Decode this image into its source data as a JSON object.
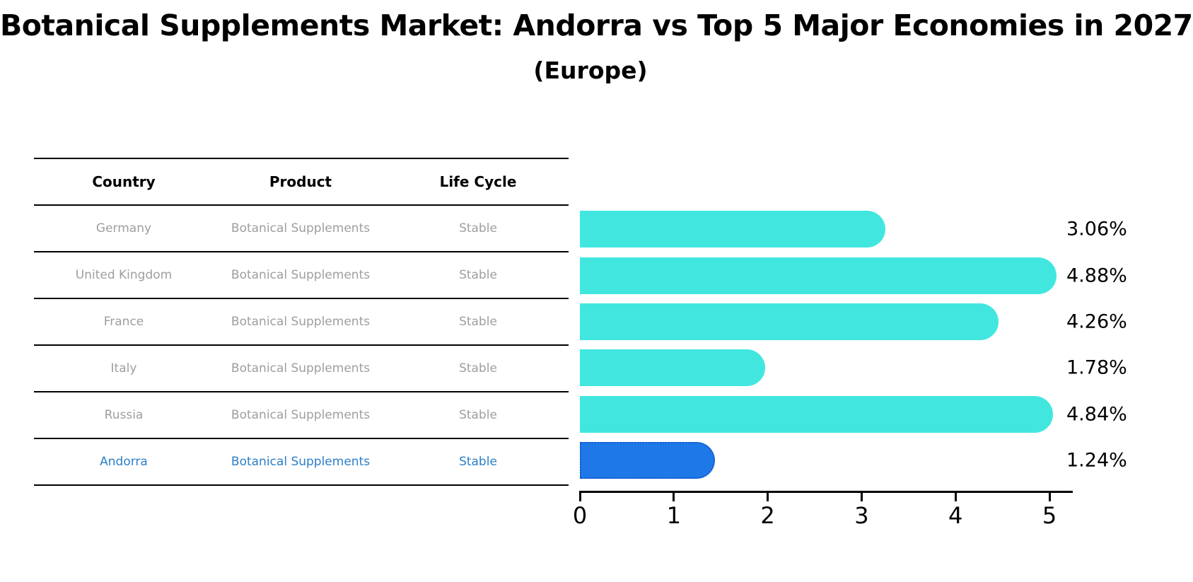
{
  "title": "Botanical Supplements Market: Andorra vs Top 5 Major Economies in 2027",
  "subtitle": "(Europe)",
  "table": {
    "headers": [
      "Country",
      "Product",
      "Life Cycle"
    ],
    "rows": [
      {
        "country": "Germany",
        "product": "Botanical Supplements",
        "life_cycle": "Stable",
        "highlight": false
      },
      {
        "country": "United Kingdom",
        "product": "Botanical Supplements",
        "life_cycle": "Stable",
        "highlight": false
      },
      {
        "country": "France",
        "product": "Botanical Supplements",
        "life_cycle": "Stable",
        "highlight": false
      },
      {
        "country": "Italy",
        "product": "Botanical Supplements",
        "life_cycle": "Stable",
        "highlight": false
      },
      {
        "country": "Russia",
        "product": "Botanical Supplements",
        "life_cycle": "Stable",
        "highlight": false
      },
      {
        "country": "Andorra",
        "product": "Botanical Supplements",
        "life_cycle": "Stable",
        "highlight": true
      }
    ]
  },
  "chart_data": {
    "type": "bar",
    "orientation": "horizontal",
    "title": "Botanical Supplements Market: Andorra vs Top 5 Major Economies in 2027 (Europe)",
    "categories": [
      "Germany",
      "United Kingdom",
      "France",
      "Italy",
      "Russia",
      "Andorra"
    ],
    "values": [
      3.06,
      4.88,
      4.26,
      1.78,
      4.84,
      1.24
    ],
    "value_labels": [
      "3.06%",
      "4.88%",
      "4.26%",
      "1.78%",
      "4.84%",
      "1.24%"
    ],
    "xlabel": "",
    "ylabel": "",
    "xlim": [
      0,
      5
    ],
    "xticks": [
      "0",
      "1",
      "2",
      "3",
      "4",
      "5"
    ],
    "grid": false,
    "legend": false,
    "highlight_index": 5,
    "bar_color": "#41e7df",
    "highlight_color": "#1e78e8",
    "highlight_border_color": "#1257c9",
    "row_text_color": "#9e9e9e",
    "highlight_text_color": "#2b7fc7"
  }
}
